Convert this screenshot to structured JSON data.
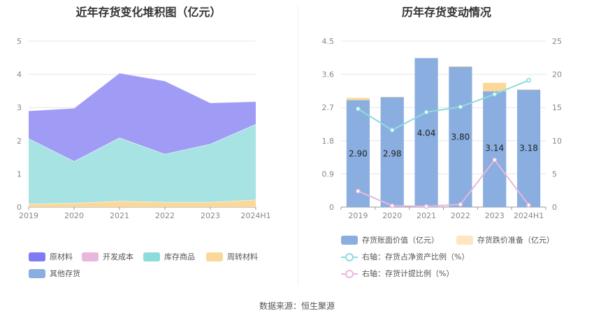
{
  "left_chart": {
    "title": "近年存货变化堆积图（亿元）",
    "chart_data": {
      "type": "area",
      "stacked": true,
      "categories": [
        "2019",
        "2020",
        "2021",
        "2022",
        "2023",
        "2024H1"
      ],
      "ylim": [
        0,
        5
      ],
      "yticks": [
        "0",
        "1",
        "2",
        "3",
        "4",
        "5"
      ],
      "series": [
        {
          "name": "周转材料",
          "color": "#fbd89a",
          "values": [
            0.1,
            0.12,
            0.18,
            0.15,
            0.15,
            0.22
          ]
        },
        {
          "name": "开发成本",
          "color": "#e8b7dd",
          "values": [
            0.0,
            0.0,
            0.0,
            0.0,
            0.0,
            0.0
          ]
        },
        {
          "name": "库存商品",
          "color": "#a7e3e3",
          "values": [
            1.97,
            1.26,
            1.91,
            1.45,
            1.75,
            2.28
          ]
        },
        {
          "name": "其他存货",
          "color": "#8aaee0",
          "values": [
            0.0,
            0.0,
            0.0,
            0.0,
            0.0,
            0.0
          ]
        },
        {
          "name": "原材料",
          "color": "#a09cf5",
          "values": [
            0.83,
            1.6,
            1.95,
            2.2,
            1.24,
            0.68
          ]
        }
      ]
    },
    "legend": [
      {
        "label": "原材料",
        "color": "#7f7cf3"
      },
      {
        "label": "开发成本",
        "color": "#e8b7dd"
      },
      {
        "label": "库存商品",
        "color": "#8ddcdc"
      },
      {
        "label": "周转材料",
        "color": "#fbd89a"
      },
      {
        "label": "其他存货",
        "color": "#8aaee0"
      }
    ]
  },
  "right_chart": {
    "title": "历年存货变动情况",
    "chart_data": {
      "type": "bar",
      "categories": [
        "2019",
        "2020",
        "2021",
        "2022",
        "2023",
        "2024H1"
      ],
      "ylim_left": [
        0,
        4.5
      ],
      "yticks_left": [
        "0",
        "0.9",
        "1.8",
        "2.7",
        "3.6",
        "4.5"
      ],
      "ylim_right": [
        0,
        25
      ],
      "yticks_right": [
        "0",
        "5",
        "10",
        "15",
        "20",
        "25"
      ],
      "series": [
        {
          "name": "存货账面价值（亿元）",
          "type": "bar",
          "color": "#8aaee0",
          "values": [
            2.9,
            2.98,
            4.04,
            3.8,
            3.14,
            3.18
          ],
          "labels": [
            "2.90",
            "2.98",
            "4.04",
            "3.80",
            "3.14",
            "3.18"
          ]
        },
        {
          "name": "存货跌价准备（亿元）",
          "type": "bar",
          "stacked": true,
          "color": "#fbd89a",
          "values": [
            0.06,
            0.01,
            0.0,
            0.02,
            0.23,
            0.01
          ]
        },
        {
          "name": "右轴：存货占净资产比例（%）",
          "type": "line",
          "axis": "right",
          "color": "#8ddcdc",
          "values": [
            14.8,
            11.6,
            14.3,
            15.1,
            17.0,
            19.1
          ]
        },
        {
          "name": "右轴：存货计提比例（%）",
          "type": "line",
          "axis": "right",
          "color": "#e8b7dd",
          "values": [
            2.4,
            0.2,
            0.1,
            0.4,
            7.1,
            0.3
          ]
        }
      ]
    },
    "legend": [
      {
        "label": "存货账面价值（亿元）",
        "color": "#8aaee0",
        "kind": "box"
      },
      {
        "label": "存货跌价准备（亿元）",
        "color": "#fde6c0",
        "kind": "box"
      },
      {
        "label": "右轴：存货占净资产比例（%）",
        "color": "#8ddcdc",
        "kind": "line"
      },
      {
        "label": "右轴：存货计提比例（%）",
        "color": "#e8b7dd",
        "kind": "line"
      }
    ]
  },
  "source": "数据来源：恒生聚源"
}
